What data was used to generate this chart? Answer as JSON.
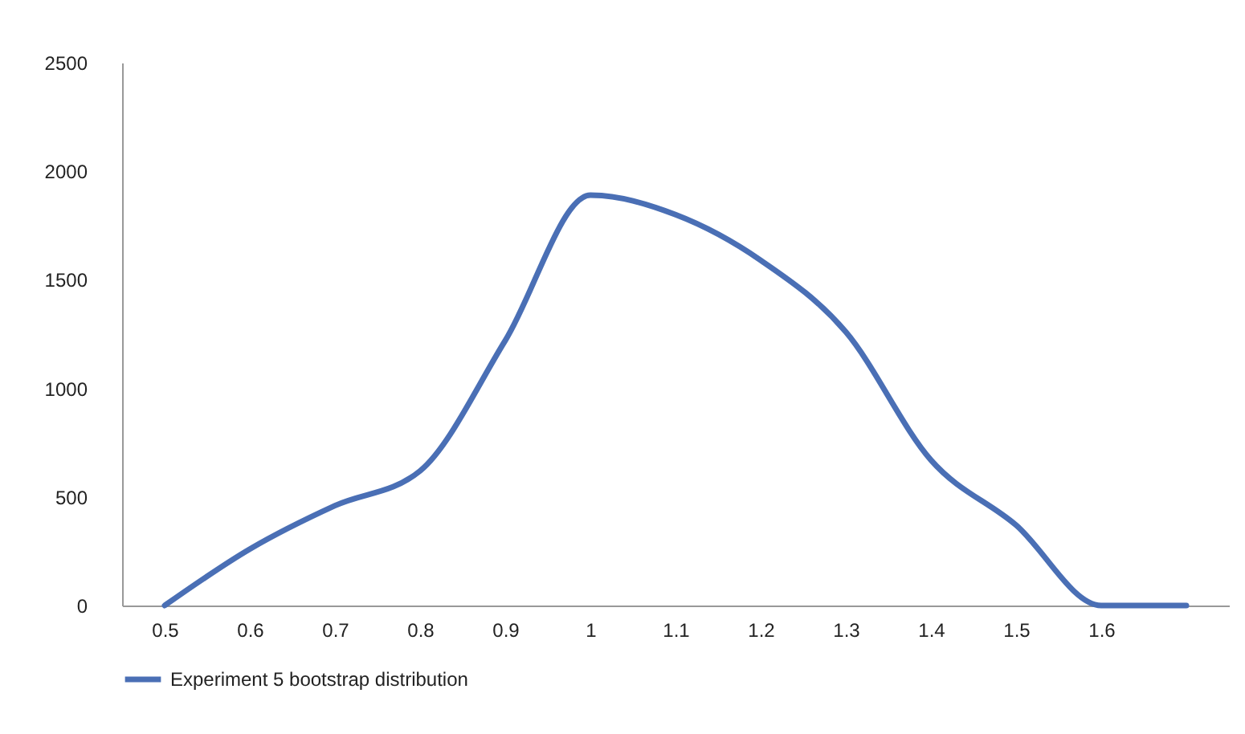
{
  "chart_data": {
    "type": "line",
    "categories": [
      "0.5",
      "0.6",
      "0.7",
      "0.8",
      "0.9",
      "1",
      "1.1",
      "1.2",
      "1.3",
      "1.4",
      "1.5",
      "1.6",
      null
    ],
    "series": [
      {
        "name": "Experiment 5 bootstrap distribution",
        "color": "#4a6fb5",
        "values": [
          0,
          260,
          460,
          620,
          1220,
          1890,
          1800,
          1590,
          1260,
          670,
          370,
          0,
          0
        ]
      }
    ],
    "ylim": [
      0,
      2500
    ],
    "yticks": [
      0,
      500,
      1000,
      1500,
      2000,
      2500
    ],
    "legend": "bottom"
  }
}
